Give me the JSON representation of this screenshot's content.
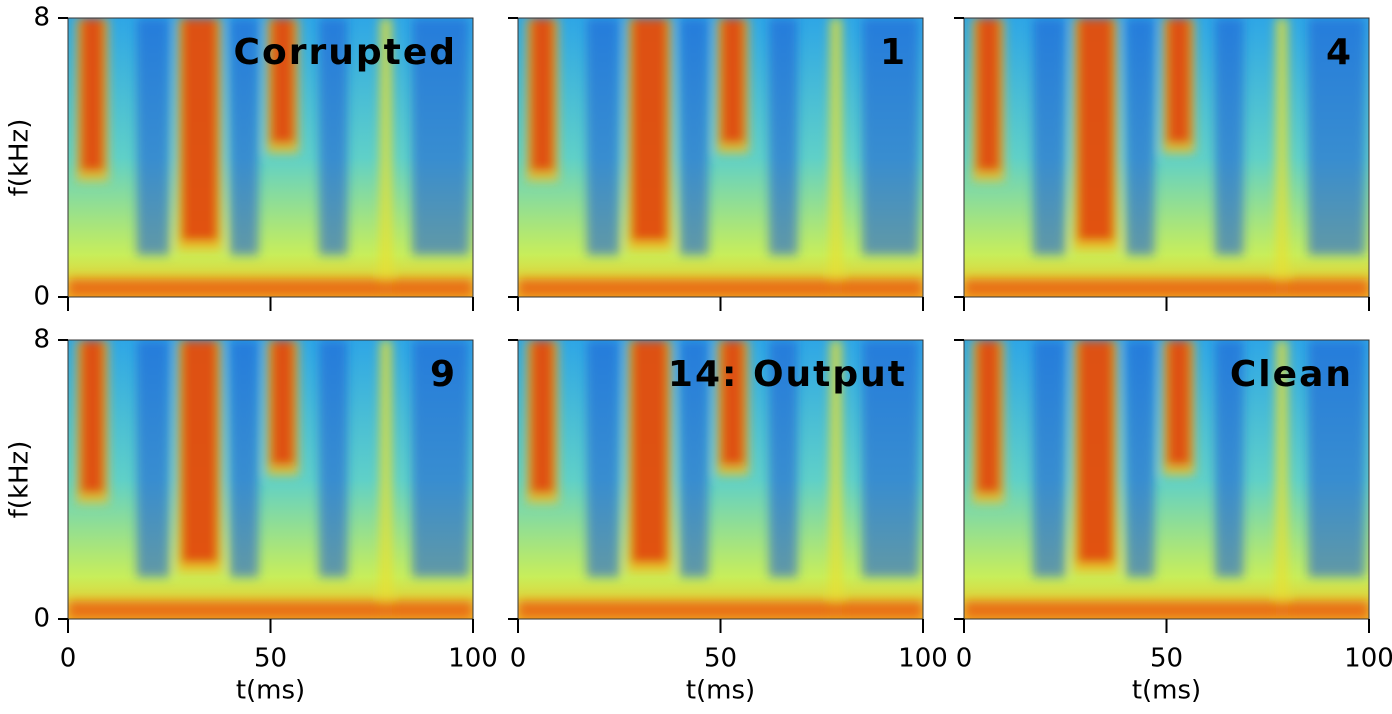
{
  "chart_data": [
    {
      "type": "spectrogram",
      "title": "Corrupted",
      "xlim": [
        0,
        100
      ],
      "ylim": [
        0,
        8
      ],
      "xticks": [
        0,
        50,
        100
      ],
      "yticks": [
        0,
        8
      ],
      "ylabel": "f(kHz)"
    },
    {
      "type": "spectrogram",
      "title": "1",
      "xlim": [
        0,
        100
      ],
      "ylim": [
        0,
        8
      ],
      "xticks": [
        0,
        50,
        100
      ],
      "yticks": [
        0,
        8
      ]
    },
    {
      "type": "spectrogram",
      "title": "4",
      "xlim": [
        0,
        100
      ],
      "ylim": [
        0,
        8
      ],
      "xticks": [
        0,
        50,
        100
      ],
      "yticks": [
        0,
        8
      ]
    },
    {
      "type": "spectrogram",
      "title": "9",
      "xlim": [
        0,
        100
      ],
      "ylim": [
        0,
        8
      ],
      "xticks": [
        0,
        50,
        100
      ],
      "yticks": [
        0,
        8
      ],
      "xlabel": "t(ms)",
      "ylabel": "f(kHz)"
    },
    {
      "type": "spectrogram",
      "title": "14: Output",
      "xlim": [
        0,
        100
      ],
      "ylim": [
        0,
        8
      ],
      "xticks": [
        0,
        50,
        100
      ],
      "yticks": [
        0,
        8
      ],
      "xlabel": "t(ms)"
    },
    {
      "type": "spectrogram",
      "title": "Clean",
      "xlim": [
        0,
        100
      ],
      "ylim": [
        0,
        8
      ],
      "xticks": [
        0,
        50,
        100
      ],
      "yticks": [
        0,
        8
      ],
      "xlabel": "t(ms)"
    }
  ]
}
